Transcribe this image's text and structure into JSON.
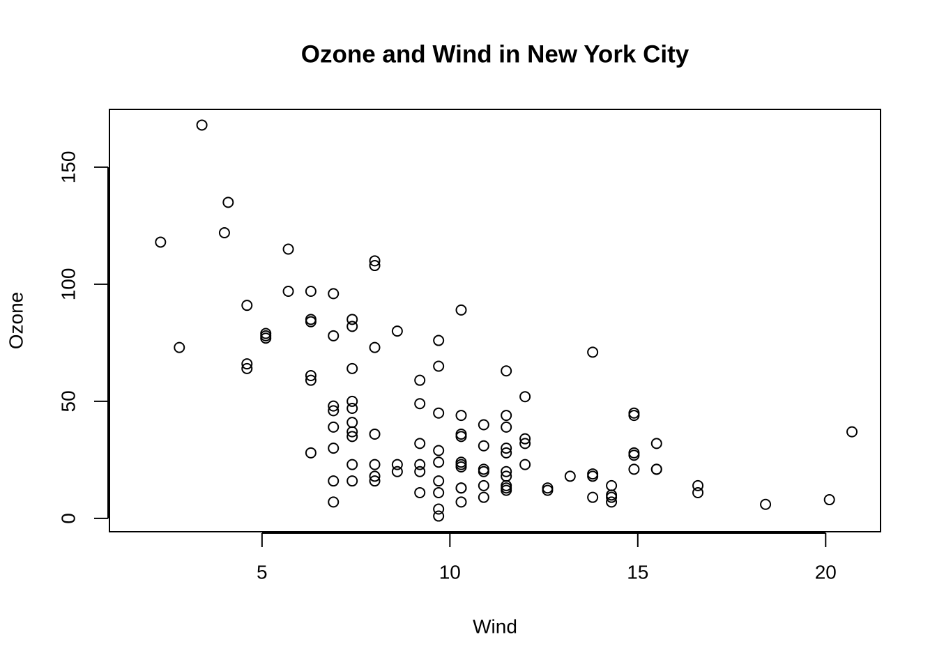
{
  "chart_data": {
    "type": "scatter",
    "title": "Ozone and Wind in New York City",
    "x_label": "Wind",
    "y_label": "Ozone",
    "x": [
      7.4,
      8.0,
      12.6,
      11.5,
      14.9,
      8.6,
      13.8,
      20.1,
      6.9,
      9.7,
      9.2,
      10.9,
      13.2,
      11.5,
      12.0,
      18.4,
      11.5,
      9.7,
      9.7,
      16.6,
      9.7,
      12.0,
      12.0,
      14.9,
      5.7,
      7.4,
      9.7,
      13.8,
      11.5,
      8.0,
      14.9,
      20.7,
      9.2,
      11.5,
      10.3,
      4.1,
      9.2,
      9.2,
      4.6,
      10.9,
      5.1,
      6.3,
      5.7,
      7.4,
      14.3,
      14.9,
      14.3,
      6.9,
      10.3,
      6.3,
      5.1,
      11.5,
      6.9,
      8.6,
      8.0,
      8.6,
      12.0,
      7.4,
      7.4,
      7.4,
      9.2,
      6.9,
      13.8,
      7.4,
      6.9,
      7.4,
      4.6,
      4.0,
      10.3,
      8.0,
      11.5,
      11.5,
      9.7,
      10.3,
      6.3,
      7.4,
      10.9,
      10.3,
      15.5,
      14.3,
      9.7,
      3.4,
      8.0,
      9.7,
      2.3,
      6.3,
      6.3,
      6.9,
      5.1,
      2.8,
      4.6,
      7.4,
      15.5,
      10.9,
      10.3,
      10.9,
      9.7,
      14.9,
      15.5,
      6.3,
      10.9,
      11.5,
      6.9,
      13.8,
      10.3,
      10.3,
      8.0,
      12.6,
      9.2,
      10.3,
      10.3,
      16.6,
      6.9,
      14.3,
      8.0,
      11.5
    ],
    "values": [
      41,
      36,
      12,
      18,
      28,
      23,
      19,
      8,
      7,
      16,
      11,
      14,
      18,
      14,
      34,
      6,
      30,
      11,
      1,
      11,
      4,
      32,
      23,
      45,
      115,
      37,
      29,
      71,
      39,
      23,
      21,
      37,
      20,
      12,
      13,
      135,
      49,
      32,
      64,
      40,
      77,
      97,
      97,
      85,
      10,
      27,
      7,
      48,
      35,
      61,
      79,
      63,
      16,
      80,
      108,
      20,
      52,
      82,
      50,
      64,
      59,
      39,
      9,
      16,
      78,
      35,
      66,
      122,
      89,
      110,
      44,
      28,
      65,
      22,
      59,
      23,
      31,
      44,
      21,
      9,
      45,
      168,
      73,
      76,
      118,
      84,
      85,
      96,
      78,
      73,
      91,
      47,
      32,
      20,
      23,
      21,
      24,
      44,
      21,
      28,
      9,
      13,
      46,
      18,
      13,
      24,
      16,
      13,
      23,
      36,
      7,
      14,
      30,
      14,
      18,
      20
    ],
    "xlim": [
      0.94,
      21.46
    ],
    "ylim": [
      -5.68,
      174.68
    ],
    "xticks": [
      5,
      10,
      15,
      20
    ],
    "yticks": [
      0,
      50,
      100,
      150
    ],
    "color": "#000000"
  }
}
